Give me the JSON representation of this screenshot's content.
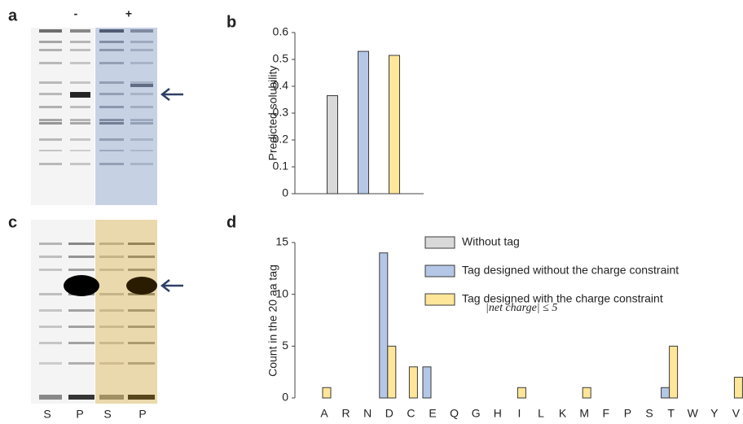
{
  "panels": {
    "a": {
      "label": "a",
      "minus": "-",
      "plus": "+"
    },
    "c": {
      "label": "c",
      "lanes": [
        "S",
        "P",
        "S",
        "P"
      ]
    }
  },
  "chart_data": [
    {
      "type": "bar",
      "label": "b",
      "ylabel": "Predicted solubility",
      "categories": [
        null,
        null,
        null
      ],
      "values": [
        0.365,
        0.53,
        0.515
      ],
      "colors": [
        "#d9d9d9",
        "#b4c7e7",
        "#ffe699"
      ],
      "ylim": [
        0,
        0.6
      ],
      "yticks": [
        0,
        0.1,
        0.2,
        0.3,
        0.4,
        0.5,
        0.6
      ]
    },
    {
      "type": "grouped_bar",
      "label": "d",
      "ylabel": "Count  in the 20 aa tag",
      "categories": [
        "A",
        "R",
        "N",
        "D",
        "C",
        "E",
        "Q",
        "G",
        "H",
        "I",
        "L",
        "K",
        "M",
        "F",
        "P",
        "S",
        "T",
        "W",
        "Y",
        "V"
      ],
      "category_colors": [
        "#222",
        "#222",
        "#222",
        "#4f8a2a",
        "#222",
        "#4f8a2a",
        "#222",
        "#222",
        "#222",
        "#222",
        "#222",
        "#222",
        "#222",
        "#222",
        "#222",
        "#222",
        "#222",
        "#222",
        "#222",
        "#222"
      ],
      "series": [
        {
          "name": "Without tag",
          "color": "#d9d9d9",
          "text_color": "#7f7f7f",
          "values": [
            null,
            null,
            null,
            null,
            null,
            null,
            null,
            null,
            null,
            null,
            null,
            null,
            null,
            null,
            null,
            null,
            null,
            null,
            null,
            null
          ]
        },
        {
          "name": "Tag designed without the charge constraint",
          "color": "#b4c7e7",
          "text_color": "#2f4a7a",
          "values": [
            0,
            0,
            0,
            14,
            0,
            3,
            0,
            0,
            0,
            0,
            0,
            0,
            0,
            0,
            0,
            0,
            1,
            0,
            0,
            0
          ]
        },
        {
          "name": "Tag designed with the charge constraint",
          "color": "#ffe699",
          "text_color": "#7f6000",
          "values": [
            1,
            0,
            0,
            5,
            3,
            0,
            0,
            0,
            0,
            1,
            0,
            0,
            1,
            0,
            0,
            0,
            5,
            0,
            0,
            2
          ]
        }
      ],
      "legend_note": "|net charge| ≤ 5",
      "ylim": [
        0,
        15
      ],
      "yticks": [
        0,
        5,
        10,
        15
      ]
    }
  ]
}
